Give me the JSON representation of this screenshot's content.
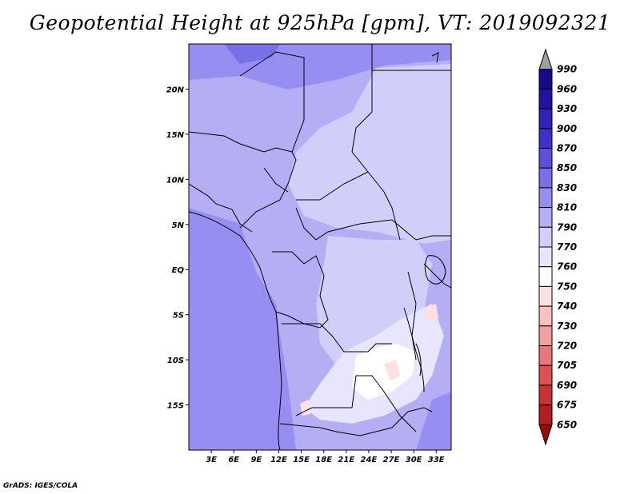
{
  "title": "Geopotential Height at 925hPa [gpm], VT: 2019092321",
  "credit": "GrADS: IGES/COLA",
  "map": {
    "lat_labels": [
      "20N",
      "15N",
      "10N",
      "5N",
      "EQ",
      "5S",
      "10S",
      "15S"
    ],
    "lat_values": [
      20,
      15,
      10,
      5,
      0,
      -5,
      -10,
      -15
    ],
    "lon_labels": [
      "3E",
      "6E",
      "9E",
      "12E",
      "15E",
      "18E",
      "21E",
      "24E",
      "27E",
      "30E",
      "33E"
    ],
    "lon_values": [
      3,
      6,
      9,
      12,
      15,
      18,
      21,
      24,
      27,
      30,
      33
    ],
    "lat_range": [
      -20,
      25
    ],
    "lon_range": [
      0,
      35
    ]
  },
  "colorbar": {
    "labels": [
      "990",
      "960",
      "930",
      "900",
      "870",
      "850",
      "830",
      "810",
      "790",
      "770",
      "760",
      "750",
      "740",
      "730",
      "720",
      "705",
      "690",
      "675",
      "650"
    ],
    "colors": [
      "#a0a0a0",
      "#150a8c",
      "#1f14a0",
      "#2d23b4",
      "#3c32c8",
      "#5a50dc",
      "#7870e6",
      "#968ef0",
      "#b4aef5",
      "#d2cefa",
      "#e8e6fc",
      "#ffffff",
      "#fde0e0",
      "#f8c0c0",
      "#f0a0a0",
      "#e87878",
      "#dc5050",
      "#c83232",
      "#b41e1e",
      "#960a0a"
    ]
  }
}
